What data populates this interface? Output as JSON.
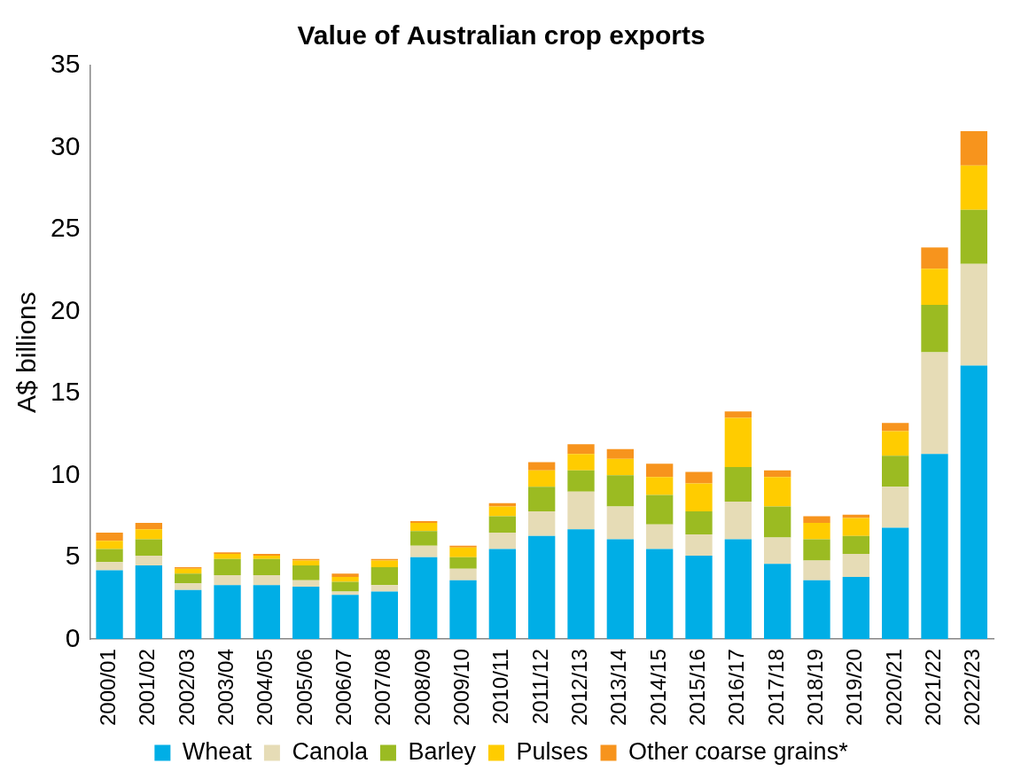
{
  "chart_data": {
    "type": "bar",
    "title": "Value of Australian crop exports",
    "y_label": "A$ billions",
    "categories": [
      "2000/01",
      "2001/02",
      "2002/03",
      "2003/04",
      "2004/05",
      "2005/06",
      "2006/07",
      "2007/08",
      "2008/09",
      "2009/10",
      "2010/11",
      "2011/12",
      "2012/13",
      "2013/14",
      "2014/15",
      "2015/16",
      "2016/17",
      "2017/18",
      "2018/19",
      "2019/20",
      "2020/21",
      "2021/22",
      "2022/23"
    ],
    "series": [
      {
        "name": "Wheat",
        "color": "#00aee6",
        "values": [
          4.2,
          4.5,
          3.0,
          3.3,
          3.3,
          3.2,
          2.7,
          2.9,
          5.0,
          3.6,
          5.5,
          6.3,
          6.7,
          6.1,
          5.5,
          5.1,
          6.1,
          4.6,
          3.6,
          3.8,
          6.8,
          11.3,
          16.7
        ]
      },
      {
        "name": "Canola",
        "color": "#e6dcb6",
        "values": [
          0.5,
          0.6,
          0.4,
          0.6,
          0.6,
          0.4,
          0.2,
          0.4,
          0.7,
          0.7,
          1.0,
          1.5,
          2.3,
          2.0,
          1.5,
          1.3,
          2.3,
          1.6,
          1.2,
          1.4,
          2.5,
          6.2,
          6.2
        ]
      },
      {
        "name": "Barley",
        "color": "#9bbb22",
        "values": [
          0.8,
          1.0,
          0.6,
          1.0,
          1.0,
          0.9,
          0.6,
          1.1,
          0.9,
          0.7,
          1.0,
          1.5,
          1.3,
          1.9,
          1.8,
          1.4,
          2.1,
          1.9,
          1.3,
          1.1,
          1.9,
          2.9,
          3.3
        ]
      },
      {
        "name": "Pulses",
        "color": "#ffcc00",
        "values": [
          0.5,
          0.6,
          0.3,
          0.3,
          0.2,
          0.3,
          0.3,
          0.4,
          0.5,
          0.6,
          0.6,
          1.0,
          1.0,
          1.0,
          1.1,
          1.7,
          3.0,
          1.8,
          1.0,
          1.1,
          1.5,
          2.2,
          2.7
        ]
      },
      {
        "name": "Other coarse grains*",
        "color": "#f7941d",
        "values": [
          0.5,
          0.4,
          0.1,
          0.1,
          0.1,
          0.1,
          0.2,
          0.1,
          0.1,
          0.1,
          0.2,
          0.5,
          0.6,
          0.6,
          0.8,
          0.7,
          0.4,
          0.4,
          0.4,
          0.2,
          0.5,
          1.3,
          2.1
        ]
      }
    ],
    "ylim": [
      0,
      35
    ],
    "yticks": [
      0,
      5,
      10,
      15,
      20,
      25,
      30,
      35
    ],
    "stacked": true,
    "grid": false,
    "legend": "bottom"
  }
}
